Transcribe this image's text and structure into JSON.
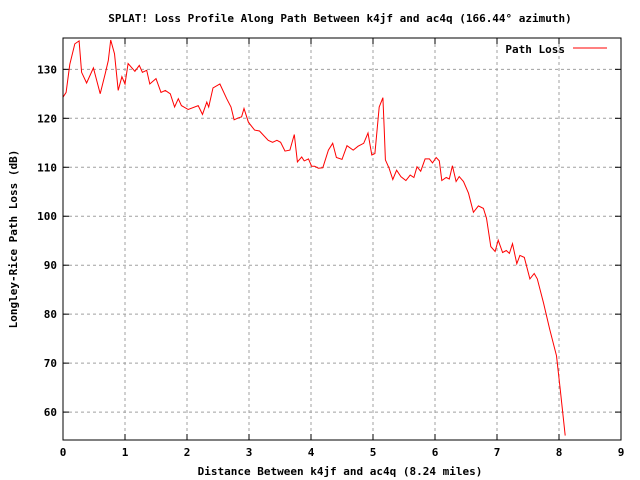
{
  "chart_data": {
    "type": "line",
    "title": "SPLAT! Loss Profile Along Path Between k4jf and ac4q (166.44° azimuth)",
    "xlabel": "Distance Between k4jf and ac4q (8.24 miles)",
    "ylabel": "Longley-Rice Path Loss (dB)",
    "xlim": [
      0,
      9
    ],
    "ylim": [
      54.3,
      136.4
    ],
    "xticks": [
      0,
      1,
      2,
      3,
      4,
      5,
      6,
      7,
      8,
      9
    ],
    "yticks": [
      60,
      70,
      80,
      90,
      100,
      110,
      120,
      130
    ],
    "grid": true,
    "legend_position": "top-right",
    "series": [
      {
        "name": "Path Loss",
        "color": "#ff0000",
        "x": [
          0,
          0.05,
          0.11,
          0.19,
          0.26,
          0.3,
          0.38,
          0.49,
          0.6,
          0.68,
          0.73,
          0.77,
          0.83,
          0.89,
          0.95,
          1.0,
          1.05,
          1.16,
          1.23,
          1.28,
          1.35,
          1.4,
          1.5,
          1.58,
          1.65,
          1.73,
          1.8,
          1.86,
          1.91,
          2.02,
          2.18,
          2.25,
          2.32,
          2.35,
          2.42,
          2.53,
          2.64,
          2.71,
          2.76,
          2.83,
          2.88,
          2.92,
          2.99,
          3.09,
          3.17,
          3.31,
          3.38,
          3.45,
          3.51,
          3.58,
          3.66,
          3.73,
          3.78,
          3.85,
          3.89,
          3.96,
          4.01,
          4.06,
          4.12,
          4.19,
          4.28,
          4.35,
          4.41,
          4.5,
          4.58,
          4.68,
          4.76,
          4.85,
          4.92,
          4.98,
          5.03,
          5.1,
          5.16,
          5.18,
          5.2,
          5.26,
          5.32,
          5.38,
          5.45,
          5.53,
          5.6,
          5.66,
          5.71,
          5.77,
          5.84,
          5.91,
          5.96,
          6.02,
          6.07,
          6.11,
          6.18,
          6.23,
          6.28,
          6.34,
          6.39,
          6.46,
          6.54,
          6.62,
          6.7,
          6.78,
          6.83,
          6.9,
          6.97,
          7.02,
          7.09,
          7.15,
          7.2,
          7.25,
          7.32,
          7.37,
          7.44,
          7.53,
          7.6,
          7.65,
          7.75,
          7.85,
          7.96,
          8.02,
          8.1
        ],
        "y": [
          124.3,
          125.3,
          131.0,
          135.2,
          135.8,
          129.4,
          127.2,
          130.3,
          125.0,
          129.1,
          131.8,
          136.0,
          133.2,
          125.7,
          128.5,
          127.0,
          131.2,
          129.6,
          130.8,
          129.4,
          129.8,
          127.0,
          128.1,
          125.3,
          125.7,
          125.0,
          122.3,
          124.0,
          122.6,
          121.8,
          122.6,
          120.8,
          123.3,
          122.3,
          126.2,
          127.0,
          124.0,
          122.3,
          119.7,
          120.1,
          120.3,
          122.0,
          119.2,
          117.6,
          117.4,
          115.5,
          115.1,
          115.5,
          115.1,
          113.3,
          113.5,
          116.7,
          111.1,
          112.1,
          111.3,
          111.7,
          110.2,
          110.2,
          109.8,
          109.9,
          113.5,
          114.9,
          112.0,
          111.6,
          114.4,
          113.5,
          114.3,
          114.9,
          117.0,
          112.5,
          112.8,
          122.3,
          124.2,
          117.9,
          111.5,
          109.8,
          107.5,
          109.4,
          108.1,
          107.3,
          108.4,
          107.9,
          110.1,
          109.2,
          111.7,
          111.7,
          110.9,
          112.0,
          111.3,
          107.3,
          107.9,
          107.6,
          110.3,
          107.1,
          108.1,
          107.1,
          104.7,
          100.8,
          102.1,
          101.6,
          99.6,
          93.8,
          92.8,
          95.1,
          92.6,
          93.0,
          92.4,
          94.4,
          90.3,
          92.0,
          91.6,
          87.2,
          88.3,
          87.2,
          82.3,
          76.9,
          71.5,
          64.7,
          55.2
        ]
      }
    ]
  }
}
